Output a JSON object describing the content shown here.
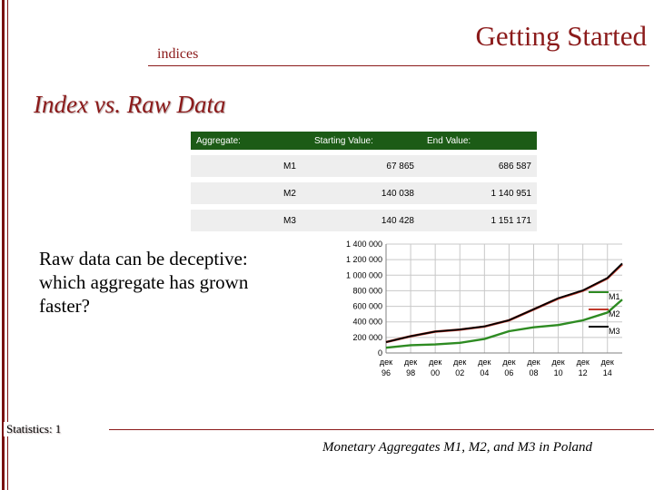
{
  "header": {
    "title": "Getting Started",
    "subtitle": "indices"
  },
  "slide": {
    "title": "Index vs. Raw Data",
    "body": "Raw data can be deceptive: which aggregate has grown faster?",
    "caption": "Monetary Aggregates M1, M2, and M3 in Poland"
  },
  "table": {
    "headers": [
      "Aggregate:",
      "Starting Value:",
      "End Value:"
    ],
    "rows": [
      {
        "name": "M1",
        "start": "67 865",
        "end": "686 587"
      },
      {
        "name": "M2",
        "start": "140 038",
        "end": "1 140 951"
      },
      {
        "name": "M3",
        "start": "140 428",
        "end": "1 151 171"
      }
    ]
  },
  "footer": {
    "section": "Statistics: 1"
  },
  "colors": {
    "accent": "#8b1a1a",
    "tableHeader": "#1c5b16",
    "m1": "#2e8b22",
    "m2": "#c0392b",
    "m3": "#000000"
  },
  "chart_data": {
    "type": "line",
    "title": "",
    "xlabel": "",
    "ylabel": "",
    "ylim": [
      0,
      1400000
    ],
    "yticks": [
      "0",
      "200 000",
      "400 000",
      "600 000",
      "800 000",
      "1 000 000",
      "1 200 000",
      "1 400 000"
    ],
    "ytick_values": [
      0,
      200000,
      400000,
      600000,
      800000,
      1000000,
      1200000,
      1400000
    ],
    "xticks": [
      {
        "top": "дек",
        "bottom": "96",
        "x": 1996
      },
      {
        "top": "дек",
        "bottom": "98",
        "x": 1998
      },
      {
        "top": "дек",
        "bottom": "00",
        "x": 2000
      },
      {
        "top": "дек",
        "bottom": "02",
        "x": 2002
      },
      {
        "top": "дек",
        "bottom": "04",
        "x": 2004
      },
      {
        "top": "дек",
        "bottom": "06",
        "x": 2006
      },
      {
        "top": "дек",
        "bottom": "08",
        "x": 2008
      },
      {
        "top": "дек",
        "bottom": "10",
        "x": 2010
      },
      {
        "top": "дек",
        "bottom": "12",
        "x": 2012
      },
      {
        "top": "дек",
        "bottom": "14",
        "x": 2014
      }
    ],
    "xlim": [
      1996,
      2015.2
    ],
    "grid": true,
    "legend": "right",
    "series": [
      {
        "name": "M1",
        "x": [
          1996,
          1998,
          2000,
          2002,
          2004,
          2006,
          2008,
          2010,
          2012,
          2014,
          2015.2
        ],
        "values": [
          67865,
          100000,
          110000,
          130000,
          180000,
          280000,
          330000,
          360000,
          420000,
          520000,
          686587
        ]
      },
      {
        "name": "M2",
        "x": [
          1996,
          1998,
          2000,
          2002,
          2004,
          2006,
          2008,
          2010,
          2012,
          2014,
          2015.2
        ],
        "values": [
          140038,
          215000,
          275000,
          300000,
          340000,
          420000,
          560000,
          700000,
          800000,
          960000,
          1140951
        ]
      },
      {
        "name": "M3",
        "x": [
          1996,
          1998,
          2000,
          2002,
          2004,
          2006,
          2008,
          2010,
          2012,
          2014,
          2015.2
        ],
        "values": [
          140428,
          216000,
          276000,
          302000,
          342000,
          422000,
          562000,
          705000,
          805000,
          965000,
          1151171
        ]
      }
    ]
  }
}
